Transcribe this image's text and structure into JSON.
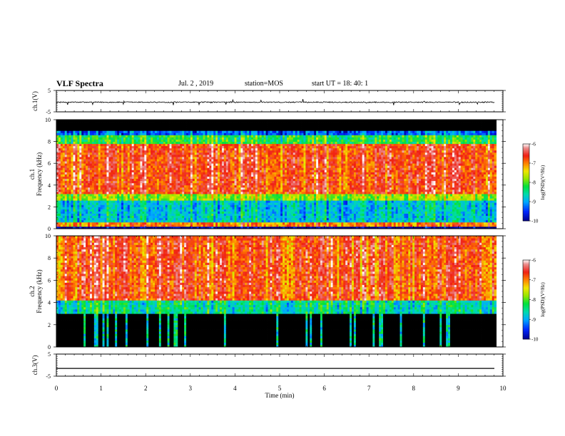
{
  "header": {
    "title": "VLF Spectra",
    "date": "Jul. 2 , 2019",
    "station": "station=MOS",
    "start": "start UT =  18: 40: 1"
  },
  "chart_data": [
    {
      "type": "line",
      "panel": "ch1-waveform",
      "ylabel": "ch.1(V)",
      "ylim": [
        -5,
        5
      ],
      "yticks": [
        "5",
        "-5"
      ],
      "xlim": [
        0,
        10
      ],
      "series": [
        {
          "values": "near-constant noise trace around -0.5 V with small spikes"
        }
      ]
    },
    {
      "type": "heatmap",
      "panel": "ch1-spectrogram",
      "ylabel": "ch.1 Frequency (kHz)",
      "ylim": [
        0,
        10
      ],
      "yticks": [
        "0",
        "2",
        "4",
        "6",
        "8",
        "10"
      ],
      "xlim": [
        0,
        9.85
      ],
      "colorbar": {
        "label": "log(PSD)(V²/Hz)",
        "range": [
          -10,
          -6
        ],
        "ticks": [
          "-6",
          "-7",
          "-8",
          "-9",
          "-10"
        ]
      },
      "bands": [
        {
          "from": 0,
          "to": 0.3,
          "level": -10
        },
        {
          "from": 0.3,
          "to": 0.7,
          "level": -7
        },
        {
          "from": 0.7,
          "to": 2.6,
          "level": -8.8
        },
        {
          "from": 2.6,
          "to": 3.2,
          "level": -7.8
        },
        {
          "from": 3.2,
          "to": 7.8,
          "level": -6.7
        },
        {
          "from": 7.8,
          "to": 8.6,
          "level": -8.2
        },
        {
          "from": 8.6,
          "to": 9.1,
          "level": -9.3
        },
        {
          "from": 9.1,
          "to": 10,
          "level": -10.5
        }
      ]
    },
    {
      "type": "heatmap",
      "panel": "ch2-spectrogram",
      "ylabel": "ch.2 Frequency (kHz)",
      "ylim": [
        0,
        10
      ],
      "yticks": [
        "0",
        "2",
        "4",
        "6",
        "8",
        "10"
      ],
      "xlim": [
        0,
        9.85
      ],
      "colorbar": {
        "label": "log(PSD)(V²/Hz)",
        "range": [
          -10,
          -6
        ],
        "ticks": [
          "-6",
          "-7",
          "-8",
          "-9",
          "-10"
        ]
      },
      "bands": [
        {
          "from": 0,
          "to": 3.0,
          "level": -10.5
        },
        {
          "from": 3.0,
          "to": 4.3,
          "level": -8.5
        },
        {
          "from": 4.3,
          "to": 10,
          "level": -6.7
        }
      ]
    },
    {
      "type": "line",
      "panel": "ch3-waveform",
      "ylabel": "ch.3(V)",
      "ylim": [
        -5,
        5
      ],
      "yticks": [
        "5",
        "-5"
      ],
      "xlim": [
        0,
        10
      ],
      "series": [
        {
          "values": "constant trace at about -1.5 V"
        }
      ]
    }
  ],
  "xaxis": {
    "label": "Time (min)",
    "ticks": [
      "0",
      "1",
      "2",
      "3",
      "4",
      "5",
      "6",
      "7",
      "8",
      "9",
      "10"
    ]
  }
}
